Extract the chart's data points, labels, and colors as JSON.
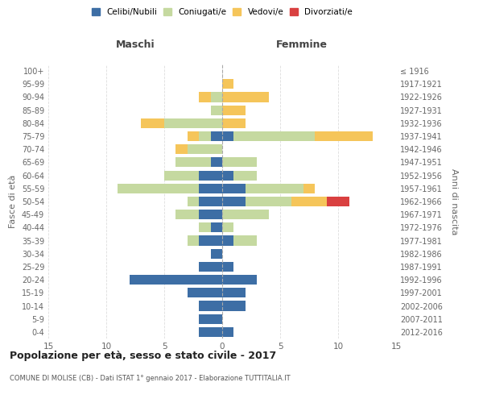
{
  "age_groups": [
    "0-4",
    "5-9",
    "10-14",
    "15-19",
    "20-24",
    "25-29",
    "30-34",
    "35-39",
    "40-44",
    "45-49",
    "50-54",
    "55-59",
    "60-64",
    "65-69",
    "70-74",
    "75-79",
    "80-84",
    "85-89",
    "90-94",
    "95-99",
    "100+"
  ],
  "birth_years": [
    "2012-2016",
    "2007-2011",
    "2002-2006",
    "1997-2001",
    "1992-1996",
    "1987-1991",
    "1982-1986",
    "1977-1981",
    "1972-1976",
    "1967-1971",
    "1962-1966",
    "1957-1961",
    "1952-1956",
    "1947-1951",
    "1942-1946",
    "1937-1941",
    "1932-1936",
    "1927-1931",
    "1922-1926",
    "1917-1921",
    "≤ 1916"
  ],
  "male": {
    "celibi": [
      2,
      2,
      2,
      3,
      8,
      2,
      1,
      2,
      1,
      2,
      2,
      2,
      2,
      1,
      0,
      1,
      0,
      0,
      0,
      0,
      0
    ],
    "coniugati": [
      0,
      0,
      0,
      0,
      0,
      0,
      0,
      1,
      1,
      2,
      1,
      7,
      3,
      3,
      3,
      1,
      5,
      1,
      1,
      0,
      0
    ],
    "vedovi": [
      0,
      0,
      0,
      0,
      0,
      0,
      0,
      0,
      0,
      0,
      0,
      0,
      0,
      0,
      1,
      1,
      2,
      0,
      1,
      0,
      0
    ],
    "divorziati": [
      0,
      0,
      0,
      0,
      0,
      0,
      0,
      0,
      0,
      0,
      0,
      0,
      0,
      0,
      0,
      0,
      0,
      0,
      0,
      0,
      0
    ]
  },
  "female": {
    "nubili": [
      1,
      0,
      2,
      2,
      3,
      1,
      0,
      1,
      0,
      0,
      2,
      2,
      1,
      0,
      0,
      1,
      0,
      0,
      0,
      0,
      0
    ],
    "coniugate": [
      0,
      0,
      0,
      0,
      0,
      0,
      0,
      2,
      1,
      4,
      4,
      5,
      2,
      3,
      0,
      7,
      0,
      0,
      0,
      0,
      0
    ],
    "vedove": [
      0,
      0,
      0,
      0,
      0,
      0,
      0,
      0,
      0,
      0,
      3,
      1,
      0,
      0,
      0,
      5,
      2,
      2,
      4,
      1,
      0
    ],
    "divorziate": [
      0,
      0,
      0,
      0,
      0,
      0,
      0,
      0,
      0,
      0,
      2,
      0,
      0,
      0,
      0,
      0,
      0,
      0,
      0,
      0,
      0
    ]
  },
  "colors": {
    "celibi": "#3d6ea5",
    "coniugati": "#c5d9a0",
    "vedovi": "#f5c55a",
    "divorziati": "#d94040"
  },
  "title": "Popolazione per età, sesso e stato civile - 2017",
  "subtitle": "COMUNE DI MOLISE (CB) - Dati ISTAT 1° gennaio 2017 - Elaborazione TUTTITALIA.IT",
  "xlabel_left": "Maschi",
  "xlabel_right": "Femmine",
  "ylabel_left": "Fasce di età",
  "ylabel_right": "Anni di nascita",
  "xlim": 15,
  "bg_color": "#ffffff",
  "grid_color": "#cccccc",
  "legend_labels": [
    "Celibi/Nubili",
    "Coniugati/e",
    "Vedovi/e",
    "Divorziati/e"
  ]
}
